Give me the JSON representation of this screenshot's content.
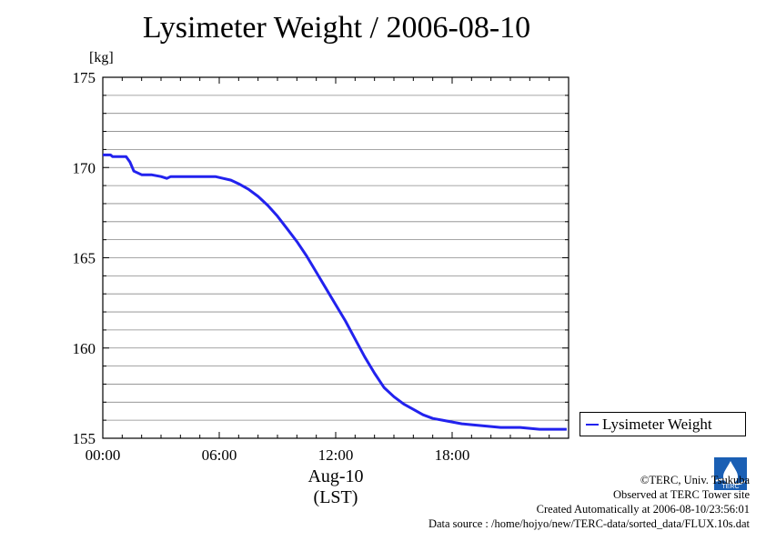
{
  "title": "Lysimeter Weight / 2006-08-10",
  "colors": {
    "series": "#2222ee",
    "grid": "#888888",
    "logo": "#1a5fb4"
  },
  "legend": {
    "label": "Lysimeter Weight",
    "placement": "right-bottom"
  },
  "footer": {
    "copyright": "©TERC, Univ. Tsukuba",
    "observed": "Observed at TERC Tower site",
    "created": "Created Automatically at 2006-08-10/23:56:01",
    "source": "Data source : /home/hojyo/new/TERC-data/sorted_data/FLUX.10s.dat",
    "logo_text": "TERC"
  },
  "chart_data": {
    "type": "line",
    "title": "Lysimeter Weight / 2006-08-10",
    "ylabel": "[kg]",
    "xlabel": "(LST)",
    "xdate": "Aug-10",
    "xlim": [
      0,
      24
    ],
    "ylim": [
      155,
      175
    ],
    "xticks": [
      {
        "value": 0,
        "label": "00:00"
      },
      {
        "value": 6,
        "label": "06:00"
      },
      {
        "value": 12,
        "label": "12:00"
      },
      {
        "value": 18,
        "label": "18:00"
      }
    ],
    "yticks": [
      {
        "value": 155,
        "label": "155"
      },
      {
        "value": 160,
        "label": "160"
      },
      {
        "value": 165,
        "label": "165"
      },
      {
        "value": 170,
        "label": "170"
      },
      {
        "value": 175,
        "label": "175"
      }
    ],
    "grid": true,
    "series": [
      {
        "name": "Lysimeter Weight",
        "x": [
          0.0,
          0.4,
          0.5,
          1.0,
          1.2,
          1.4,
          1.6,
          1.8,
          2.0,
          2.5,
          3.0,
          3.3,
          3.5,
          4.0,
          5.0,
          5.8,
          6.2,
          6.6,
          7.0,
          7.5,
          8.0,
          8.5,
          9.0,
          9.5,
          10.0,
          10.5,
          11.0,
          11.5,
          12.0,
          12.5,
          13.0,
          13.5,
          14.0,
          14.5,
          15.0,
          15.5,
          16.0,
          16.5,
          17.0,
          17.5,
          18.0,
          18.5,
          19.0,
          19.5,
          20.0,
          20.5,
          21.0,
          21.5,
          22.0,
          22.5,
          23.0,
          23.5,
          23.9
        ],
        "values": [
          170.7,
          170.7,
          170.6,
          170.6,
          170.6,
          170.3,
          169.8,
          169.7,
          169.6,
          169.6,
          169.5,
          169.4,
          169.5,
          169.5,
          169.5,
          169.5,
          169.4,
          169.3,
          169.1,
          168.8,
          168.4,
          167.9,
          167.3,
          166.6,
          165.9,
          165.1,
          164.2,
          163.3,
          162.4,
          161.5,
          160.5,
          159.5,
          158.6,
          157.8,
          157.3,
          156.9,
          156.6,
          156.3,
          156.1,
          156.0,
          155.9,
          155.8,
          155.75,
          155.7,
          155.65,
          155.6,
          155.6,
          155.6,
          155.55,
          155.5,
          155.5,
          155.5,
          155.5
        ]
      }
    ]
  }
}
